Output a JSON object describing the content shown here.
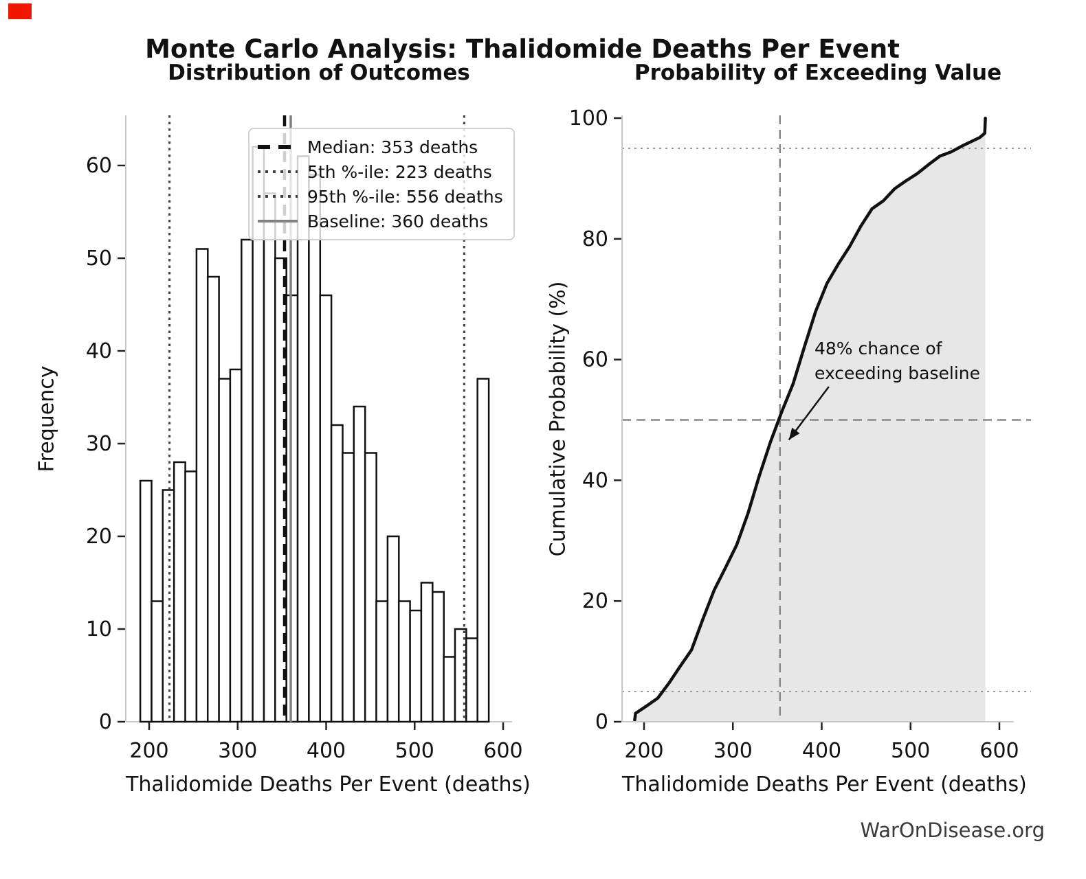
{
  "figure": {
    "title": "Monte Carlo Analysis: Thalidomide Deaths Per Event",
    "watermark": "WarOnDisease.org",
    "background": "#ffffff",
    "red_marker_color": "#f01800"
  },
  "chart_data": [
    {
      "type": "bar",
      "title": "Distribution of Outcomes",
      "xlabel": "Thalidomide Deaths Per Event (deaths)",
      "ylabel": "Frequency",
      "bin_start": 190,
      "bin_width": 12.7,
      "counts": [
        26,
        13,
        25,
        28,
        27,
        51,
        48,
        37,
        38,
        52,
        62,
        57,
        50,
        46,
        61,
        59,
        46,
        32,
        29,
        34,
        29,
        13,
        20,
        13,
        12,
        15,
        14,
        7,
        10,
        9,
        37
      ],
      "xticks": [
        200,
        300,
        400,
        500,
        600
      ],
      "yticks": [
        0,
        10,
        20,
        30,
        40,
        50,
        60
      ],
      "xlim": [
        175,
        610
      ],
      "ylim": [
        0,
        65
      ],
      "grid": false,
      "bar_fill": "#ffffff",
      "bar_edge": "#111111",
      "legend_position": "upper center",
      "markers": [
        {
          "name": "median",
          "value": 353,
          "style": "dashed",
          "color": "#111111",
          "label": "Median: 353 deaths"
        },
        {
          "name": "p5",
          "value": 223,
          "style": "dotted",
          "color": "#3f3f3f",
          "label": "5th %-ile: 223 deaths"
        },
        {
          "name": "p95",
          "value": 556,
          "style": "dotted",
          "color": "#3f3f3f",
          "label": "95th %-ile: 556 deaths"
        },
        {
          "name": "baseline",
          "value": 360,
          "style": "solid",
          "color": "#808080",
          "label": "Baseline: 360 deaths"
        }
      ]
    },
    {
      "type": "line",
      "title": "Probability of Exceeding Value",
      "xlabel": "Thalidomide Deaths Per Event (deaths)",
      "ylabel": "Cumulative Probability (%)",
      "x": [
        189.5,
        190.5,
        202.7,
        215.4,
        228.1,
        240.8,
        253.5,
        266.2,
        278.9,
        291.6,
        304.3,
        317.0,
        329.7,
        342.4,
        355.1,
        367.8,
        380.5,
        393.2,
        405.9,
        418.6,
        431.3,
        444.0,
        456.7,
        469.4,
        482.1,
        494.8,
        507.5,
        520.2,
        532.9,
        545.6,
        558.3,
        571.0,
        578.0,
        583.5,
        584.2
      ],
      "y": [
        0.3,
        1.4,
        2.6,
        3.9,
        6.4,
        9.2,
        11.9,
        17.0,
        21.8,
        25.5,
        29.3,
        34.5,
        40.7,
        46.4,
        51.4,
        56.0,
        62.1,
        68.0,
        72.6,
        75.8,
        78.7,
        82.1,
        85.0,
        86.3,
        88.3,
        89.6,
        90.8,
        92.3,
        93.7,
        94.4,
        95.4,
        96.3,
        96.8,
        97.5,
        100.0
      ],
      "xticks": [
        200,
        300,
        400,
        500,
        600
      ],
      "yticks": [
        0,
        20,
        40,
        60,
        80,
        100
      ],
      "xlim": [
        175,
        616
      ],
      "ylim": [
        0,
        100
      ],
      "grid": false,
      "line_color": "#111111",
      "fill_color": "#e7e7e7",
      "guides": {
        "dotted_h": [
          5,
          95
        ],
        "dashed_h": 50,
        "dashed_v": 353
      },
      "annotation": {
        "text": "48% chance of\nexceeding baseline",
        "anchor_x": 360,
        "anchor_y": 50,
        "arrow_from": [
          408,
          55.5
        ],
        "arrow_to": [
          363,
          46.7
        ]
      }
    }
  ]
}
